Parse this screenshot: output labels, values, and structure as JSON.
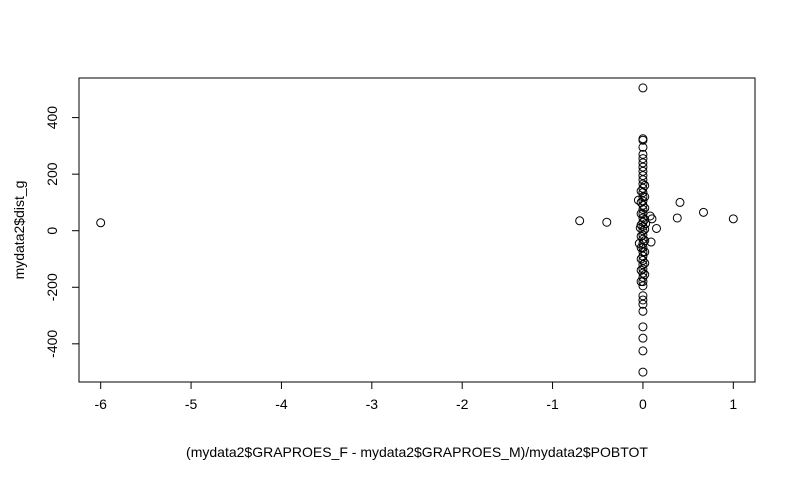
{
  "chart_data": {
    "type": "scatter",
    "title": "",
    "xlabel": "(mydata2$GRAPROES_F - mydata2$GRAPROES_M)/mydata2$POBTOT",
    "ylabel": "mydata2$dist_g",
    "xlim": [
      -6.24,
      1.24
    ],
    "ylim": [
      -535,
      540
    ],
    "xticks": [
      -6,
      -5,
      -4,
      -3,
      -2,
      -1,
      0,
      1
    ],
    "xtick_labels": [
      "-6",
      "-5",
      "-4",
      "-3",
      "-2",
      "-1",
      "0",
      "1"
    ],
    "yticks": [
      -400,
      -200,
      0,
      200,
      400
    ],
    "ytick_labels": [
      "-400",
      "-200",
      "0",
      "200",
      "400"
    ],
    "grid": false,
    "points": [
      {
        "x": -6.0,
        "y": 28
      },
      {
        "x": -0.7,
        "y": 35
      },
      {
        "x": -0.4,
        "y": 30
      },
      {
        "x": -0.05,
        "y": 108
      },
      {
        "x": -0.04,
        "y": -45
      },
      {
        "x": 0.08,
        "y": 52
      },
      {
        "x": 0.1,
        "y": 42
      },
      {
        "x": 0.09,
        "y": -40
      },
      {
        "x": 0.15,
        "y": 8
      },
      {
        "x": 0.38,
        "y": 45
      },
      {
        "x": 0.41,
        "y": 100
      },
      {
        "x": 0.67,
        "y": 65
      },
      {
        "x": 1.0,
        "y": 42
      },
      {
        "x": 0.0,
        "y": 505
      },
      {
        "x": 0.0,
        "y": 325
      },
      {
        "x": 0.0,
        "y": 320
      },
      {
        "x": 0.0,
        "y": 295
      },
      {
        "x": 0.0,
        "y": 270
      },
      {
        "x": 0.0,
        "y": 255
      },
      {
        "x": 0.0,
        "y": 240
      },
      {
        "x": 0.0,
        "y": 225
      },
      {
        "x": 0.0,
        "y": 210
      },
      {
        "x": 0.0,
        "y": 195
      },
      {
        "x": 0.0,
        "y": 180
      },
      {
        "x": 0.0,
        "y": 165
      },
      {
        "x": 0.0,
        "y": 150
      },
      {
        "x": 0.0,
        "y": 135
      },
      {
        "x": 0.0,
        "y": 120
      },
      {
        "x": 0.0,
        "y": 105
      },
      {
        "x": 0.0,
        "y": 90
      },
      {
        "x": 0.0,
        "y": 75
      },
      {
        "x": 0.0,
        "y": 60
      },
      {
        "x": 0.0,
        "y": 45
      },
      {
        "x": 0.0,
        "y": 30
      },
      {
        "x": 0.0,
        "y": 15
      },
      {
        "x": 0.0,
        "y": 0
      },
      {
        "x": 0.0,
        "y": -15
      },
      {
        "x": 0.0,
        "y": -30
      },
      {
        "x": 0.0,
        "y": -45
      },
      {
        "x": 0.0,
        "y": -60
      },
      {
        "x": 0.0,
        "y": -75
      },
      {
        "x": 0.0,
        "y": -90
      },
      {
        "x": 0.0,
        "y": -105
      },
      {
        "x": 0.0,
        "y": -120
      },
      {
        "x": 0.0,
        "y": -135
      },
      {
        "x": 0.0,
        "y": -150
      },
      {
        "x": 0.0,
        "y": -165
      },
      {
        "x": 0.0,
        "y": -180
      },
      {
        "x": 0.0,
        "y": -195
      },
      {
        "x": 0.0,
        "y": -230
      },
      {
        "x": 0.0,
        "y": -245
      },
      {
        "x": 0.0,
        "y": -260
      },
      {
        "x": 0.0,
        "y": -285
      },
      {
        "x": 0.0,
        "y": -340
      },
      {
        "x": 0.0,
        "y": -380
      },
      {
        "x": 0.0,
        "y": -425
      },
      {
        "x": 0.0,
        "y": -500
      },
      {
        "x": 0.02,
        "y": 160
      },
      {
        "x": 0.02,
        "y": 120
      },
      {
        "x": 0.02,
        "y": 80
      },
      {
        "x": 0.02,
        "y": 40
      },
      {
        "x": 0.02,
        "y": 5
      },
      {
        "x": 0.02,
        "y": -35
      },
      {
        "x": 0.02,
        "y": -75
      },
      {
        "x": 0.02,
        "y": -115
      },
      {
        "x": 0.02,
        "y": -155
      },
      {
        "x": -0.02,
        "y": 140
      },
      {
        "x": -0.02,
        "y": 100
      },
      {
        "x": -0.02,
        "y": 60
      },
      {
        "x": -0.02,
        "y": 20
      },
      {
        "x": -0.02,
        "y": -20
      },
      {
        "x": -0.02,
        "y": -60
      },
      {
        "x": -0.02,
        "y": -100
      },
      {
        "x": -0.02,
        "y": -140
      },
      {
        "x": -0.02,
        "y": -180
      },
      {
        "x": 0.03,
        "y": 25
      },
      {
        "x": -0.03,
        "y": 10
      }
    ]
  }
}
